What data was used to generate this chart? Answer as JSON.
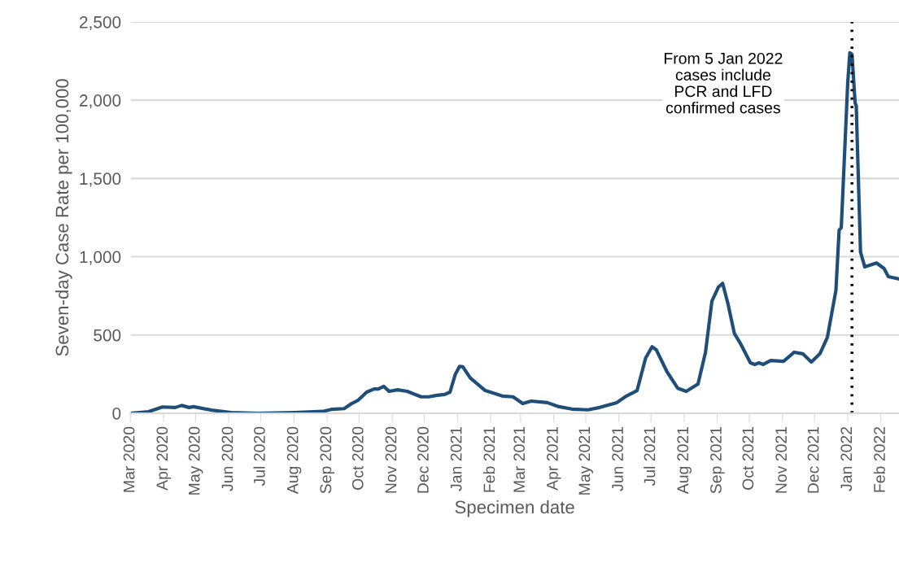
{
  "chart_data": {
    "type": "line",
    "xlabel": "Specimen date",
    "ylabel": "Seven-day Case Rate per 100,000",
    "x": [
      "2020-03-01",
      "2020-03-18",
      "2020-03-31",
      "2020-04-12",
      "2020-04-18",
      "2020-04-25",
      "2020-04-29",
      "2020-05-16",
      "2020-06-03",
      "2020-06-28",
      "2020-08-02",
      "2020-08-28",
      "2020-09-05",
      "2020-09-17",
      "2020-09-24",
      "2020-09-30",
      "2020-10-08",
      "2020-10-15",
      "2020-10-19",
      "2020-10-24",
      "2020-10-29",
      "2020-11-06",
      "2020-11-15",
      "2020-11-28",
      "2020-12-05",
      "2020-12-13",
      "2020-12-20",
      "2020-12-25",
      "2020-12-30",
      "2021-01-03",
      "2021-01-06",
      "2021-01-13",
      "2021-01-27",
      "2021-02-12",
      "2021-02-22",
      "2021-03-03",
      "2021-03-11",
      "2021-03-26",
      "2021-04-06",
      "2021-04-18",
      "2021-05-03",
      "2021-05-14",
      "2021-05-30",
      "2021-06-08",
      "2021-06-18",
      "2021-06-26",
      "2021-07-02",
      "2021-07-06",
      "2021-07-16",
      "2021-07-26",
      "2021-08-03",
      "2021-08-14",
      "2021-08-21",
      "2021-08-27",
      "2021-09-02",
      "2021-09-06",
      "2021-09-11",
      "2021-09-17",
      "2021-09-23",
      "2021-10-02",
      "2021-10-06",
      "2021-10-10",
      "2021-10-14",
      "2021-10-21",
      "2021-11-02",
      "2021-11-12",
      "2021-11-20",
      "2021-11-28",
      "2021-12-06",
      "2021-12-13",
      "2021-12-21",
      "2021-12-24",
      "2021-12-26",
      "2022-01-01",
      "2022-01-03",
      "2022-01-05",
      "2022-01-08",
      "2022-01-09",
      "2022-01-13",
      "2022-01-17",
      "2022-01-28",
      "2022-02-04",
      "2022-02-08",
      "2022-02-18"
    ],
    "series": [
      {
        "color": "#1f4e79",
        "values": [
          0,
          10,
          40,
          37,
          50,
          37,
          42,
          20,
          5,
          0,
          5,
          12,
          25,
          30,
          62,
          83,
          135,
          155,
          155,
          172,
          140,
          150,
          140,
          105,
          105,
          115,
          120,
          135,
          250,
          300,
          297,
          225,
          145,
          110,
          105,
          62,
          78,
          68,
          42,
          27,
          22,
          37,
          68,
          110,
          145,
          353,
          425,
          405,
          265,
          160,
          140,
          187,
          390,
          717,
          805,
          830,
          700,
          510,
          442,
          322,
          312,
          322,
          312,
          337,
          332,
          390,
          380,
          327,
          380,
          485,
          785,
          1170,
          1185,
          2105,
          2303,
          2293,
          1980,
          1965,
          1030,
          935,
          960,
          925,
          873,
          858
        ]
      }
    ],
    "xlim": [
      "2020-03-01",
      "2022-02-18"
    ],
    "xticks": [
      {
        "value": "2020-03-01",
        "label": "Mar 2020"
      },
      {
        "value": "2020-04-01",
        "label": "Apr 2020"
      },
      {
        "value": "2020-05-01",
        "label": "May 2020"
      },
      {
        "value": "2020-06-01",
        "label": "Jun 2020"
      },
      {
        "value": "2020-07-01",
        "label": "Jul 2020"
      },
      {
        "value": "2020-08-01",
        "label": "Aug 2020"
      },
      {
        "value": "2020-09-01",
        "label": "Sep 2020"
      },
      {
        "value": "2020-10-01",
        "label": "Oct 2020"
      },
      {
        "value": "2020-11-01",
        "label": "Nov 2020"
      },
      {
        "value": "2020-12-01",
        "label": "Dec 2020"
      },
      {
        "value": "2021-01-01",
        "label": "Jan 2021"
      },
      {
        "value": "2021-02-01",
        "label": "Feb 2021"
      },
      {
        "value": "2021-03-01",
        "label": "Mar 2021"
      },
      {
        "value": "2021-04-01",
        "label": "Apr 2021"
      },
      {
        "value": "2021-05-01",
        "label": "May 2021"
      },
      {
        "value": "2021-06-01",
        "label": "Jun 2021"
      },
      {
        "value": "2021-07-01",
        "label": "Jul 2021"
      },
      {
        "value": "2021-08-01",
        "label": "Aug 2021"
      },
      {
        "value": "2021-09-01",
        "label": "Sep 2021"
      },
      {
        "value": "2021-10-01",
        "label": "Oct 2021"
      },
      {
        "value": "2021-11-01",
        "label": "Nov 2021"
      },
      {
        "value": "2021-12-01",
        "label": "Dec 2021"
      },
      {
        "value": "2022-01-01",
        "label": "Jan 2022"
      },
      {
        "value": "2022-02-01",
        "label": "Feb 2022"
      }
    ],
    "ylim": [
      0,
      2500
    ],
    "yticks": [
      {
        "value": 0,
        "label": "0"
      },
      {
        "value": 500,
        "label": "500"
      },
      {
        "value": 1000,
        "label": "1,000"
      },
      {
        "value": 1500,
        "label": "1,500"
      },
      {
        "value": 2000,
        "label": "2,000"
      },
      {
        "value": 2500,
        "label": "2,500"
      }
    ],
    "grid": "y",
    "marker": "none",
    "line_style": "solid",
    "ref_lines": [
      {
        "axis": "x",
        "value": "2022-01-05",
        "label": "From 5 Jan 2022\ncases include\nPCR and LFD\nconfirmed cases",
        "color": "#000000",
        "line_style": "dotted"
      }
    ]
  }
}
